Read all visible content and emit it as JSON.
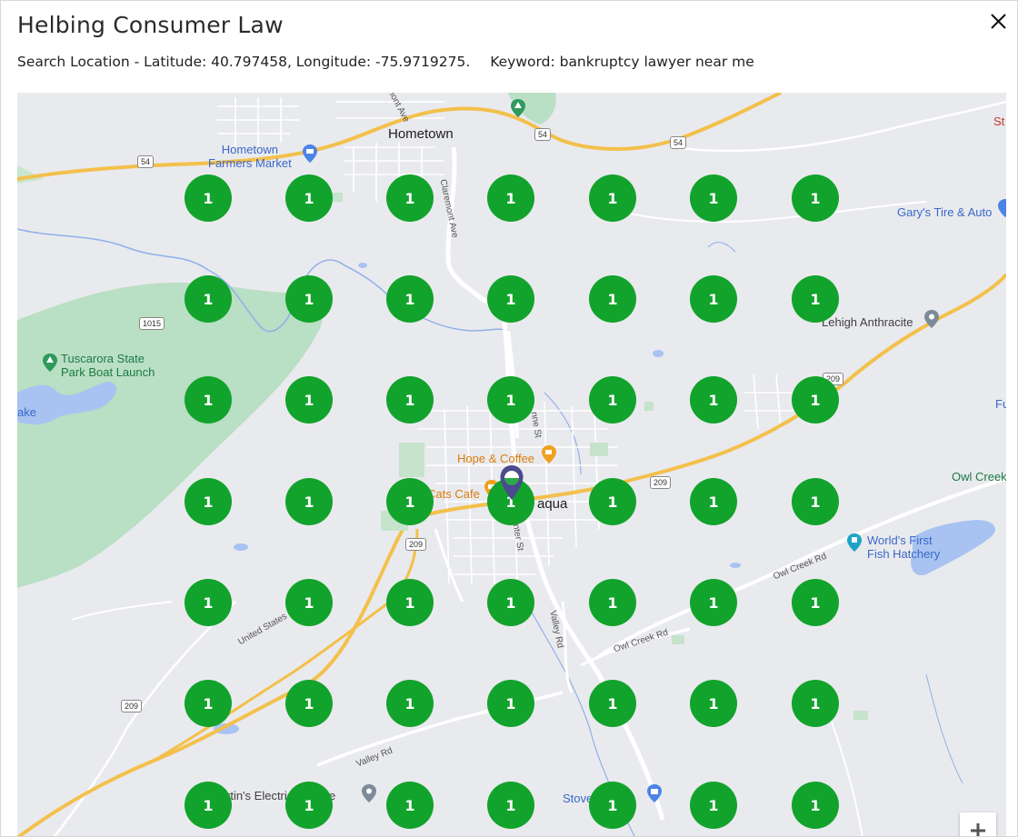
{
  "dialog": {
    "title": "Helbing Consumer Law",
    "search_location": "Search Location - Latitude: 40.797458, Longitude: -75.9719275.",
    "keyword": "Keyword: bankruptcy lawyer near me"
  },
  "map": {
    "labels": {
      "hometown": "Hometown",
      "market": "Hometown\nFarmers Market",
      "tuscarora": "Tuscarora State\nPark Boat Launch",
      "lake": "ake",
      "gary": "Gary's Tire & Auto",
      "lehigh": "Lehigh Anthracite",
      "hope": "Hope & Coffee",
      "cats": "Cats Cafe",
      "town": "aqua",
      "owl": "Owl Creek",
      "hatchery": "World's First\nFish Hatchery",
      "martin": "rtin's Electric Service",
      "stove": "Stove",
      "fu": "Fu",
      "st": "St",
      "claremont": "Claremont Ave",
      "nont": "mont Ave",
      "valleyrd": "Valley Rd",
      "valleyrd2": "Valley Rd",
      "owlcreekrd": "Owl Creek Rd",
      "owlcreekrd2": "Owl Creek Rd",
      "unitedstates": "United States",
      "centerst": "nter St",
      "stnort": "nne St"
    },
    "shields": {
      "s54a": "54",
      "s54b": "54",
      "s54c": "54",
      "s1015": "1015",
      "s209a": "209",
      "s209b": "209",
      "s209c": "209",
      "s209d": "209"
    },
    "grid_counts": [
      [
        "1",
        "1",
        "1",
        "1",
        "1",
        "1",
        "1"
      ],
      [
        "1",
        "1",
        "1",
        "1",
        "1",
        "1",
        "1"
      ],
      [
        "1",
        "1",
        "1",
        "1",
        "1",
        "1",
        "1"
      ],
      [
        "1",
        "1",
        "1",
        "1",
        "1",
        "1",
        "1"
      ],
      [
        "1",
        "1",
        "1",
        "1",
        "1",
        "1",
        "1"
      ],
      [
        "1",
        "1",
        "1",
        "1",
        "1",
        "1",
        "1"
      ],
      [
        "1",
        "1",
        "1",
        "1",
        "1",
        "1",
        "1"
      ]
    ],
    "marker_color": "#12a32c",
    "center_pin_color": "#4a4a8f"
  },
  "controls": {
    "zoom_in_icon": "plus-icon",
    "close_icon": "close-icon"
  }
}
